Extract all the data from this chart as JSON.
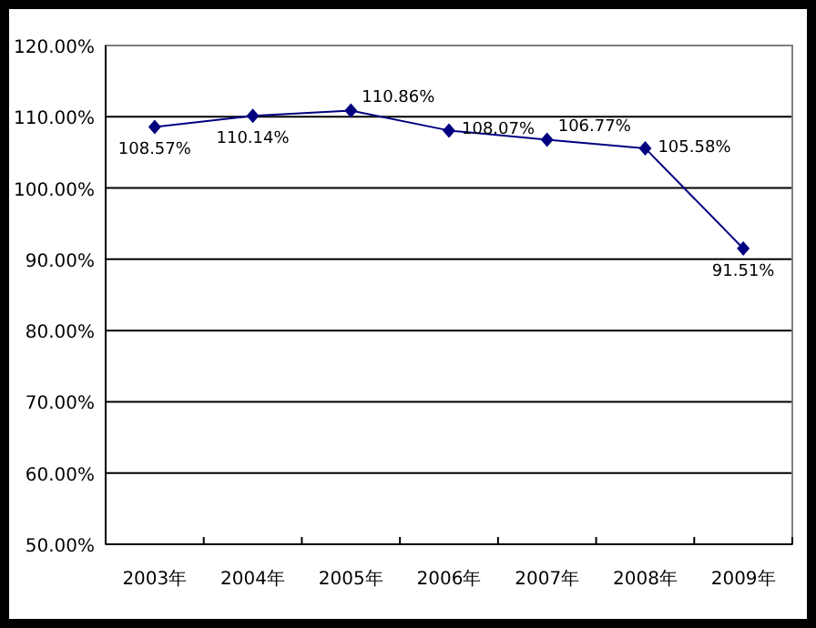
{
  "chart_data": {
    "type": "line",
    "categories": [
      "2003年",
      "2004年",
      "2005年",
      "2006年",
      "2007年",
      "2008年",
      "2009年"
    ],
    "series": [
      {
        "color": "#000080",
        "values": [
          108.57,
          110.14,
          110.86,
          108.07,
          106.77,
          105.58,
          91.51
        ],
        "value_labels": [
          "108.57%",
          "110.14%",
          "110.86%",
          "108.07%",
          "106.77%",
          "105.58%",
          "91.51%"
        ]
      }
    ],
    "ylim": [
      50,
      120
    ],
    "yticks": [
      {
        "value": 50,
        "label": "50.00%"
      },
      {
        "value": 60,
        "label": "60.00%"
      },
      {
        "value": 70,
        "label": "70.00%"
      },
      {
        "value": 80,
        "label": "80.00%"
      },
      {
        "value": 90,
        "label": "90.00%"
      },
      {
        "value": 100,
        "label": "100.00%"
      },
      {
        "value": 110,
        "label": "110.00%"
      },
      {
        "value": 120,
        "label": "120.00%"
      }
    ],
    "grid": "y",
    "marker": "diamond"
  }
}
